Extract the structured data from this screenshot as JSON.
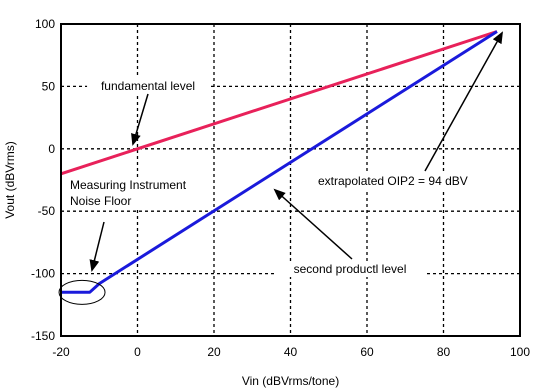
{
  "chart_data": {
    "type": "line",
    "title": "",
    "xlabel": "Vin (dBVrms/tone)",
    "ylabel": "Vout (dBVrms)",
    "xlim": [
      -20,
      100
    ],
    "ylim": [
      -150,
      100
    ],
    "x_ticks": [
      -20,
      0,
      20,
      40,
      60,
      80,
      100
    ],
    "y_ticks": [
      -150,
      -100,
      -50,
      0,
      50,
      100
    ],
    "grid": true,
    "series": [
      {
        "name": "fundamental level",
        "color": "#e8215a",
        "points": [
          [
            -20,
            -20
          ],
          [
            94,
            94
          ]
        ]
      },
      {
        "name": "second productl level",
        "color": "#1a1adb",
        "points": [
          [
            -20,
            -115
          ],
          [
            -12.5,
            -115
          ],
          [
            -10,
            -108
          ],
          [
            94,
            94
          ]
        ]
      }
    ],
    "annotations": [
      {
        "id": "fundamental",
        "lines": [
          "fundamental level"
        ]
      },
      {
        "id": "noise",
        "lines": [
          "Measuring Instrument",
          "Noise Floor"
        ]
      },
      {
        "id": "oip2",
        "lines": [
          "extrapolated OIP2 = 94 dBV"
        ]
      },
      {
        "id": "second",
        "lines": [
          "second productl level"
        ]
      }
    ]
  }
}
